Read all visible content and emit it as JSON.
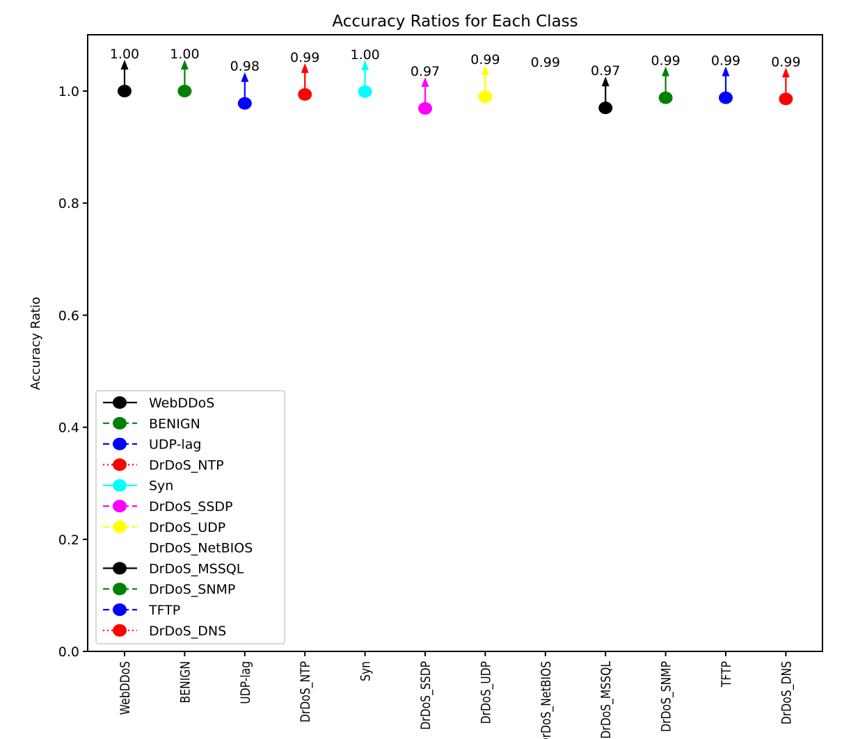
{
  "chart_data": {
    "type": "scatter",
    "title": "Accuracy Ratios for Each Class",
    "xlabel": "",
    "ylabel": "Accuracy Ratio",
    "ylim": [
      0.0,
      1.1
    ],
    "yticks": [
      "0.0",
      "0.2",
      "0.4",
      "0.6",
      "0.8",
      "1.0"
    ],
    "grid": false,
    "legend_position": "lower-left",
    "categories": [
      "WebDDoS",
      "BENIGN",
      "UDP-lag",
      "DrDoS_NTP",
      "Syn",
      "DrDoS_SSDP",
      "DrDoS_UDP",
      "DrDoS_NetBIOS",
      "DrDoS_MSSQL",
      "DrDoS_SNMP",
      "TFTP",
      "DrDoS_DNS"
    ],
    "series": [
      {
        "name": "WebDDoS",
        "value": 1.0,
        "label": "1.00",
        "color": "#000000",
        "line": "solid",
        "visible": true
      },
      {
        "name": "BENIGN",
        "value": 1.0,
        "label": "1.00",
        "color": "#008000",
        "line": "dashed",
        "visible": true
      },
      {
        "name": "UDP-lag",
        "value": 0.978,
        "label": "0.98",
        "color": "#0000ff",
        "line": "dashed",
        "visible": true
      },
      {
        "name": "DrDoS_NTP",
        "value": 0.994,
        "label": "0.99",
        "color": "#ff0000",
        "line": "dotted",
        "visible": true
      },
      {
        "name": "Syn",
        "value": 0.999,
        "label": "1.00",
        "color": "#00ffff",
        "line": "solid",
        "visible": true
      },
      {
        "name": "DrDoS_SSDP",
        "value": 0.969,
        "label": "0.97",
        "color": "#ff00ff",
        "line": "dashed",
        "visible": true
      },
      {
        "name": "DrDoS_UDP",
        "value": 0.99,
        "label": "0.99",
        "color": "#ffff00",
        "line": "dashed",
        "visible": true
      },
      {
        "name": "DrDoS_NetBIOS",
        "value": 0.99,
        "label": "0.99",
        "color": "#ffffff",
        "line": "none",
        "visible": false
      },
      {
        "name": "DrDoS_MSSQL",
        "value": 0.97,
        "label": "0.97",
        "color": "#000000",
        "line": "solid",
        "visible": true
      },
      {
        "name": "DrDoS_SNMP",
        "value": 0.988,
        "label": "0.99",
        "color": "#008000",
        "line": "dashed",
        "visible": true
      },
      {
        "name": "TFTP",
        "value": 0.988,
        "label": "0.99",
        "color": "#0000ff",
        "line": "dashed",
        "visible": true
      },
      {
        "name": "DrDoS_DNS",
        "value": 0.986,
        "label": "0.99",
        "color": "#ff0000",
        "line": "dotted",
        "visible": true
      }
    ]
  }
}
